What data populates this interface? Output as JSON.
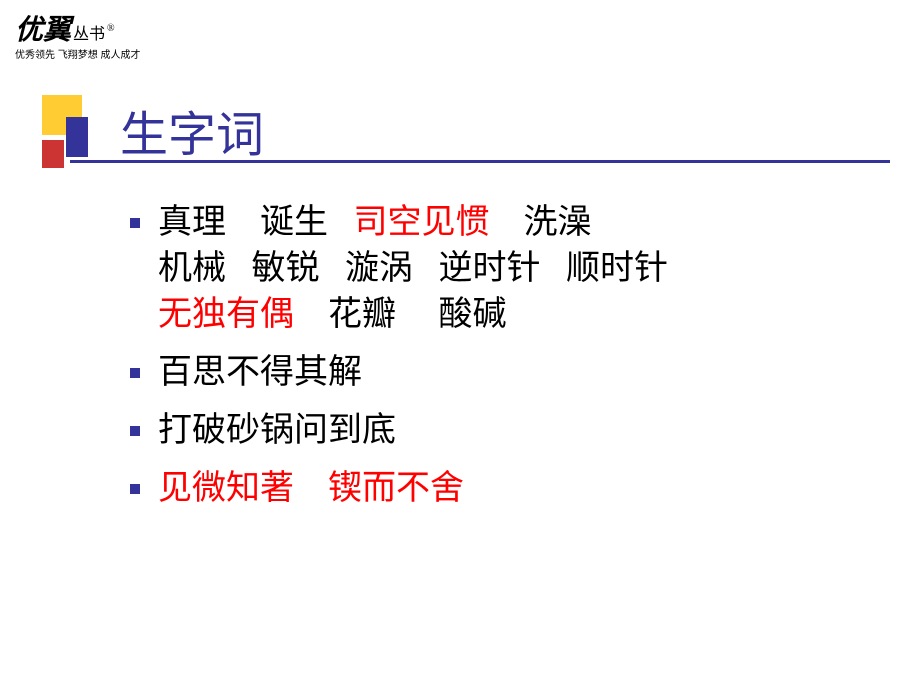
{
  "logo": {
    "main": "优翼",
    "sub": "丛书",
    "reg": "®",
    "tagline": "优秀领先 飞翔梦想 成人成才"
  },
  "title": "生字词",
  "colors": {
    "title_color": "#333399",
    "highlight_color": "#ff0000",
    "text_color": "#000000",
    "bullet_color": "#333399",
    "yellow": "#ffcc33",
    "blue": "#333399",
    "red": "#cc3333"
  },
  "items": {
    "line1_1": "真理",
    "line1_2": "诞生",
    "line1_3": "司空见惯",
    "line1_4": "洗澡",
    "line2_1": "机械",
    "line2_2": "敏锐",
    "line2_3": "漩涡",
    "line2_4": "逆时针",
    "line2_5": "顺时针",
    "line3_1": "无独有偶",
    "line3_2": "花瓣",
    "line3_3": "酸碱",
    "bullet2": " 百思不得其解",
    "bullet3": "打破砂锅问到底",
    "bullet4_1": "见微知著",
    "bullet4_2": "锲而不舍"
  }
}
